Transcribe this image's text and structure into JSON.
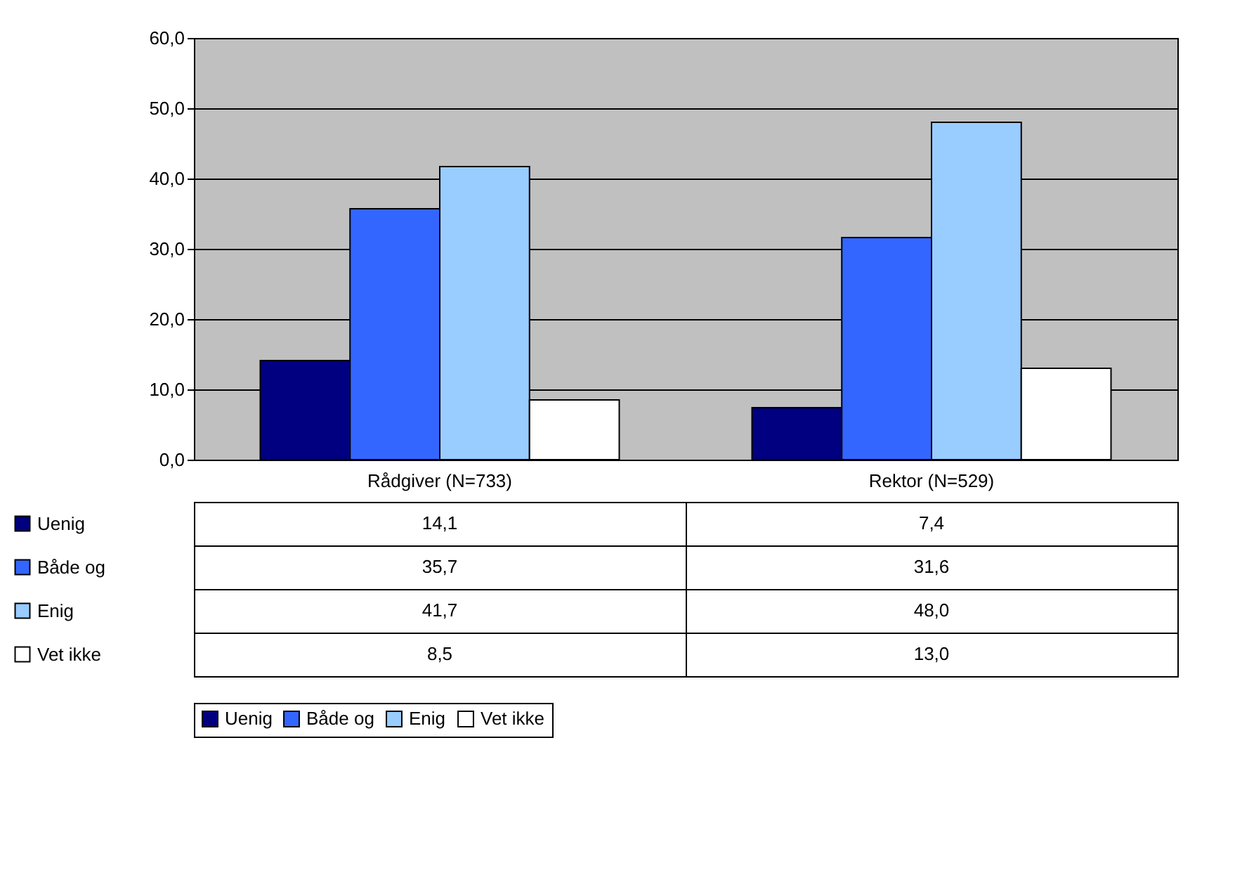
{
  "chart_data": {
    "type": "bar",
    "categories": [
      "Rådgiver (N=733)",
      "Rektor (N=529)"
    ],
    "series": [
      {
        "name": "Uenig",
        "color": "#000080",
        "values": [
          14.1,
          7.4
        ],
        "value_labels": [
          "14,1",
          "7,4"
        ]
      },
      {
        "name": "Både og",
        "color": "#3366ff",
        "values": [
          35.7,
          31.6
        ],
        "value_labels": [
          "35,7",
          "31,6"
        ]
      },
      {
        "name": "Enig",
        "color": "#99ccff",
        "values": [
          41.7,
          48.0
        ],
        "value_labels": [
          "41,7",
          "48,0"
        ]
      },
      {
        "name": "Vet ikke",
        "color": "#ffffff",
        "values": [
          8.5,
          13.0
        ],
        "value_labels": [
          "8,5",
          "13,0"
        ]
      }
    ],
    "ylim": [
      0,
      60
    ],
    "yticks": [
      {
        "value": 0,
        "label": "0,0"
      },
      {
        "value": 10,
        "label": "10,0"
      },
      {
        "value": 20,
        "label": "20,0"
      },
      {
        "value": 30,
        "label": "30,0"
      },
      {
        "value": 40,
        "label": "40,0"
      },
      {
        "value": 50,
        "label": "50,0"
      },
      {
        "value": 60,
        "label": "60,0"
      }
    ],
    "grid": "y",
    "legend": "bottom"
  }
}
